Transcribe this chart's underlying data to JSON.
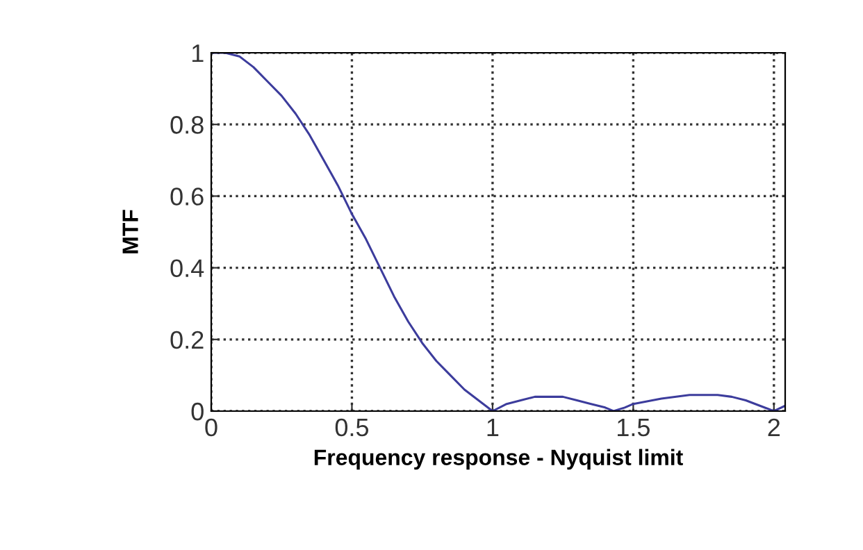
{
  "chart_data": {
    "type": "line",
    "xlabel": "Frequency response - Nyquist limit",
    "ylabel": "MTF",
    "x": [
      0,
      0.05,
      0.1,
      0.15,
      0.2,
      0.25,
      0.3,
      0.35,
      0.4,
      0.45,
      0.5,
      0.55,
      0.6,
      0.65,
      0.7,
      0.75,
      0.8,
      0.85,
      0.9,
      0.95,
      1.0,
      1.05,
      1.1,
      1.15,
      1.2,
      1.25,
      1.3,
      1.35,
      1.4,
      1.43,
      1.47,
      1.5,
      1.6,
      1.7,
      1.8,
      1.85,
      1.9,
      1.95,
      2.0,
      2.04
    ],
    "series": [
      {
        "color": "#3c3c9c",
        "values": [
          1,
          1,
          0.99,
          0.96,
          0.92,
          0.88,
          0.83,
          0.77,
          0.7,
          0.63,
          0.55,
          0.48,
          0.4,
          0.32,
          0.25,
          0.19,
          0.14,
          0.1,
          0.06,
          0.03,
          0.0,
          0.02,
          0.03,
          0.04,
          0.04,
          0.04,
          0.03,
          0.02,
          0.01,
          0.0,
          0.01,
          0.02,
          0.035,
          0.045,
          0.045,
          0.04,
          0.03,
          0.015,
          0.0,
          0.015
        ]
      }
    ],
    "xlim": [
      0,
      2.04
    ],
    "ylim": [
      0,
      1
    ],
    "xticks": [
      0,
      0.5,
      1,
      1.5,
      2
    ],
    "yticks": [
      0,
      0.2,
      0.4,
      0.6,
      0.8,
      1
    ],
    "grid": true,
    "marker": "none",
    "line_style": "solid"
  }
}
